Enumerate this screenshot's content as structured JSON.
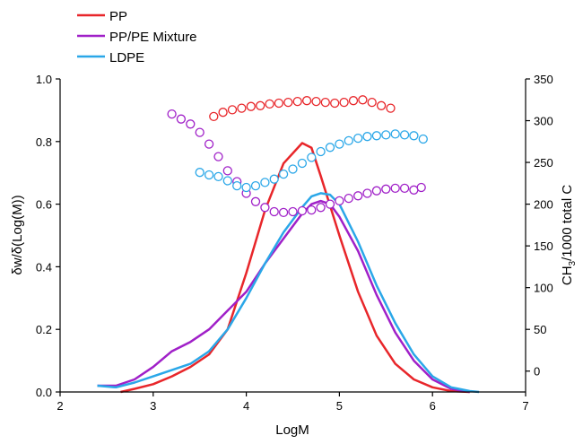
{
  "chart_data": {
    "type": "line",
    "xlabel": "LogM",
    "ylabel_left": "δw/δ(Log(M))",
    "ylabel_right_prefix": "CH",
    "ylabel_right_sub": "3",
    "ylabel_right_suffix": "/1000 total C",
    "xlim": [
      2,
      7
    ],
    "ylim_left": [
      0,
      1.0
    ],
    "ylim_right": [
      -25,
      350
    ],
    "x_ticks": [
      "2",
      "3",
      "4",
      "5",
      "6",
      "7"
    ],
    "y_left_ticks": [
      "0.0",
      "0.2",
      "0.4",
      "0.6",
      "0.8",
      "1.0"
    ],
    "y_right_ticks": [
      "0",
      "50",
      "100",
      "150",
      "200",
      "250",
      "300",
      "350"
    ],
    "legend": [
      {
        "name": "PP",
        "color": "#e8262a"
      },
      {
        "name": "PP/PE Mixture",
        "color": "#a020c8"
      },
      {
        "name": "LDPE",
        "color": "#2aa7e8"
      }
    ],
    "series": [
      {
        "name": "PP",
        "axis": "left",
        "style": "line",
        "color": "#e8262a",
        "x": [
          2.65,
          2.8,
          3.0,
          3.2,
          3.4,
          3.6,
          3.8,
          4.0,
          4.2,
          4.4,
          4.6,
          4.7,
          4.8,
          5.0,
          5.2,
          5.4,
          5.6,
          5.8,
          6.0,
          6.2,
          6.4
        ],
        "y": [
          0.0,
          0.01,
          0.025,
          0.05,
          0.08,
          0.12,
          0.2,
          0.38,
          0.58,
          0.73,
          0.795,
          0.78,
          0.69,
          0.5,
          0.32,
          0.18,
          0.09,
          0.04,
          0.015,
          0.003,
          0.0
        ]
      },
      {
        "name": "PP/PE Mixture",
        "axis": "left",
        "style": "line",
        "color": "#a020c8",
        "x": [
          2.4,
          2.6,
          2.8,
          3.0,
          3.2,
          3.4,
          3.6,
          3.8,
          4.0,
          4.2,
          4.4,
          4.6,
          4.7,
          4.8,
          4.9,
          5.0,
          5.2,
          5.4,
          5.6,
          5.8,
          6.0,
          6.2,
          6.4
        ],
        "y": [
          0.02,
          0.02,
          0.04,
          0.08,
          0.13,
          0.16,
          0.2,
          0.26,
          0.32,
          0.41,
          0.49,
          0.57,
          0.6,
          0.61,
          0.6,
          0.56,
          0.45,
          0.31,
          0.19,
          0.1,
          0.04,
          0.01,
          0.0
        ]
      },
      {
        "name": "LDPE",
        "axis": "left",
        "style": "line",
        "color": "#2aa7e8",
        "x": [
          2.4,
          2.6,
          2.8,
          3.0,
          3.2,
          3.4,
          3.6,
          3.8,
          4.0,
          4.2,
          4.4,
          4.6,
          4.7,
          4.8,
          4.9,
          5.0,
          5.2,
          5.4,
          5.6,
          5.8,
          6.0,
          6.2,
          6.4,
          6.5
        ],
        "y": [
          0.02,
          0.015,
          0.03,
          0.05,
          0.07,
          0.09,
          0.13,
          0.2,
          0.3,
          0.41,
          0.51,
          0.59,
          0.625,
          0.635,
          0.63,
          0.6,
          0.48,
          0.34,
          0.22,
          0.12,
          0.05,
          0.015,
          0.003,
          0.0
        ]
      },
      {
        "name": "PP",
        "axis": "right",
        "style": "markers",
        "color": "#e8262a",
        "x": [
          3.65,
          3.75,
          3.85,
          3.95,
          4.05,
          4.15,
          4.25,
          4.35,
          4.45,
          4.55,
          4.65,
          4.75,
          4.85,
          4.95,
          5.05,
          5.15,
          5.25,
          5.35,
          5.45,
          5.55
        ],
        "y": [
          305,
          310,
          313,
          315,
          317,
          318,
          320,
          321,
          322,
          323,
          324,
          323,
          322,
          321,
          322,
          324,
          325,
          322,
          318,
          315
        ]
      },
      {
        "name": "PP/PE Mixture",
        "axis": "right",
        "style": "markers",
        "color": "#a020c8",
        "x": [
          3.2,
          3.3,
          3.4,
          3.5,
          3.6,
          3.7,
          3.8,
          3.9,
          4.0,
          4.1,
          4.2,
          4.3,
          4.4,
          4.5,
          4.6,
          4.7,
          4.8,
          4.9,
          5.0,
          5.1,
          5.2,
          5.3,
          5.4,
          5.5,
          5.6,
          5.7,
          5.8,
          5.88
        ],
        "y": [
          308,
          302,
          296,
          286,
          272,
          257,
          240,
          227,
          213,
          203,
          196,
          191,
          190,
          191,
          192,
          193,
          196,
          200,
          204,
          207,
          210,
          213,
          216,
          218,
          219,
          219,
          217,
          220
        ]
      },
      {
        "name": "LDPE",
        "axis": "right",
        "style": "markers",
        "color": "#2aa7e8",
        "x": [
          3.5,
          3.6,
          3.7,
          3.8,
          3.9,
          4.0,
          4.1,
          4.2,
          4.3,
          4.4,
          4.5,
          4.6,
          4.7,
          4.8,
          4.9,
          5.0,
          5.1,
          5.2,
          5.3,
          5.4,
          5.5,
          5.6,
          5.7,
          5.8,
          5.9
        ],
        "y": [
          238,
          235,
          233,
          228,
          222,
          220,
          222,
          226,
          230,
          236,
          242,
          249,
          256,
          263,
          268,
          272,
          276,
          279,
          281,
          282,
          283,
          284,
          283,
          282,
          278
        ]
      }
    ]
  }
}
